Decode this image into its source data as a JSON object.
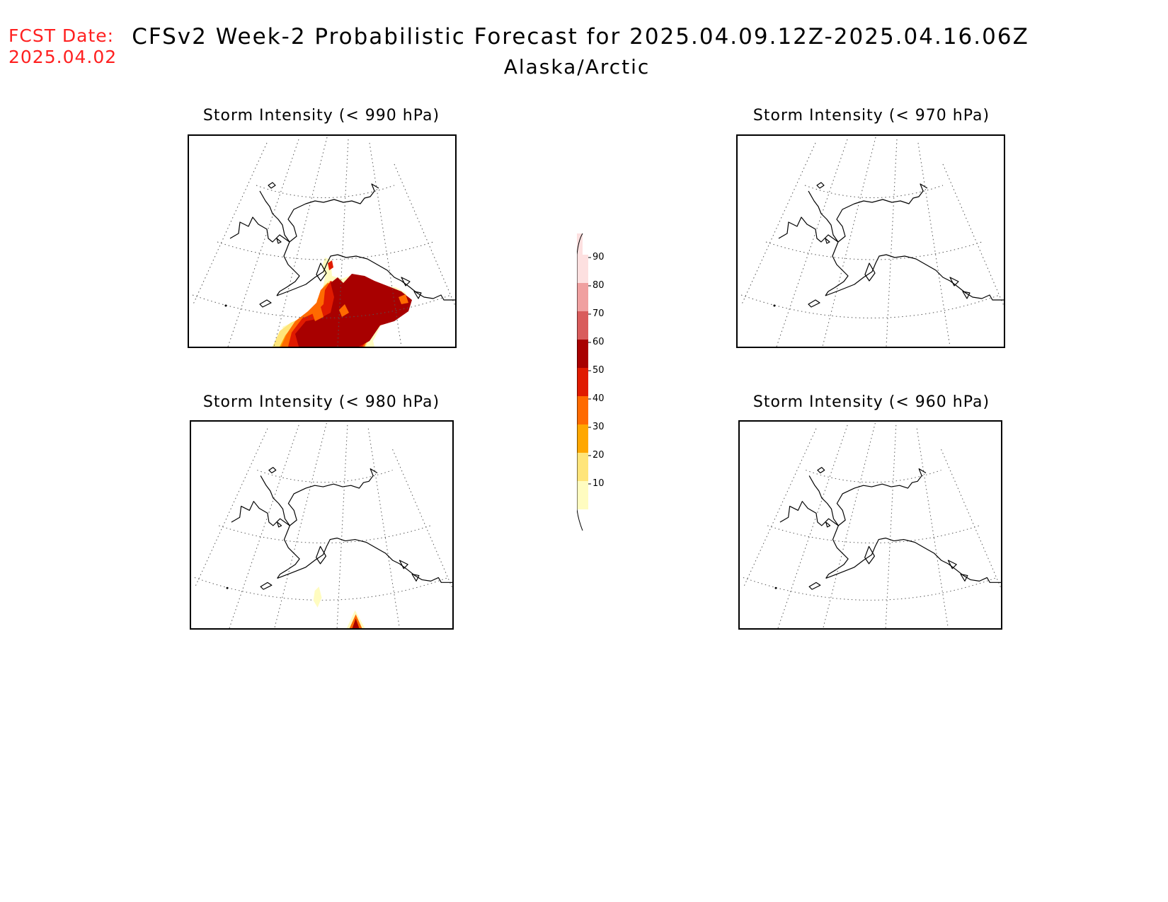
{
  "header": {
    "fcst_label": "FCST Date:",
    "fcst_date": "2025.04.02",
    "title": "CFSv2 Week-2 Probabilistic Forecast for 2025.04.09.12Z-2025.04.16.06Z",
    "subtitle": "Alaska/Arctic"
  },
  "panels": [
    {
      "id": "p990",
      "title": "Storm Intensity (< 990 hPa)",
      "max_probability": 70
    },
    {
      "id": "p970",
      "title": "Storm Intensity (< 970 hPa)",
      "max_probability": 0
    },
    {
      "id": "p980",
      "title": "Storm Intensity (< 980 hPa)",
      "max_probability": 60
    },
    {
      "id": "p960",
      "title": "Storm Intensity (< 960 hPa)",
      "max_probability": 0
    }
  ],
  "colorbar": {
    "levels": [
      "10",
      "20",
      "30",
      "40",
      "50",
      "60",
      "70",
      "80",
      "90"
    ],
    "colors": [
      "#fffcc0",
      "#ffe57a",
      "#ffa700",
      "#ff6a00",
      "#e01a00",
      "#a80000",
      "#d95c5c",
      "#f0a0a0",
      "#fde0e0"
    ]
  }
}
